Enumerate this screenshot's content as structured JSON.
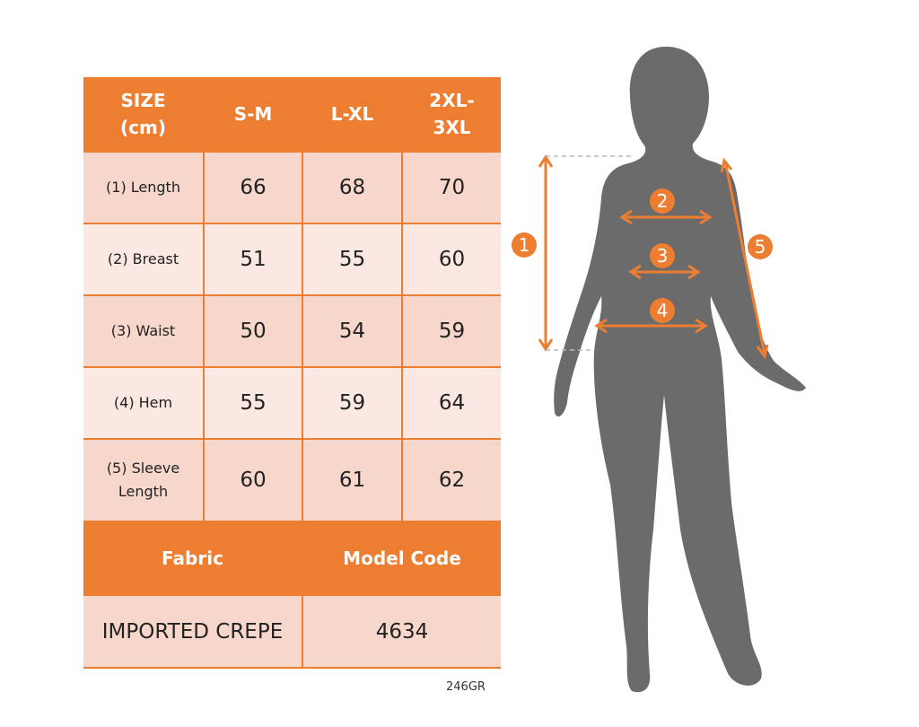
{
  "header": {
    "size_label": "SIZE\n(cm)",
    "sizes": [
      "S-M",
      "L-XL",
      "2XL-\n3XL"
    ]
  },
  "rows": [
    {
      "label": "(1) Length",
      "values": [
        "66",
        "68",
        "70"
      ]
    },
    {
      "label": "(2) Breast",
      "values": [
        "51",
        "55",
        "60"
      ]
    },
    {
      "label": "(3) Waist",
      "values": [
        "50",
        "54",
        "59"
      ]
    },
    {
      "label": "(4) Hem",
      "values": [
        "55",
        "59",
        "64"
      ]
    },
    {
      "label": "(5) Sleeve\nLength",
      "values": [
        "60",
        "61",
        "62"
      ]
    }
  ],
  "footer": {
    "fabric_label": "Fabric",
    "model_code_label": "Model Code",
    "fabric": "IMPORTED CREPE",
    "model_code": "4634"
  },
  "product_code": "246GR",
  "markers": [
    "1",
    "2",
    "3",
    "4",
    "5"
  ],
  "colors": {
    "accent": "#ED7D31",
    "silhouette": "#6B6B6B"
  }
}
